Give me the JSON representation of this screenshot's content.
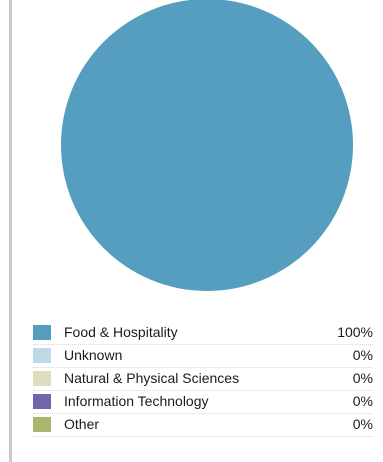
{
  "chart_data": {
    "type": "pie",
    "categories": [
      "Food & Hospitality",
      "Unknown",
      "Natural & Physical Sciences",
      "Information Technology",
      "Other"
    ],
    "values": [
      100,
      0,
      0,
      0,
      0
    ],
    "value_labels": [
      "100%",
      "0%",
      "0%",
      "0%",
      "0%"
    ],
    "colors": [
      "#559ec0",
      "#bcdbe6",
      "#dfdcbf",
      "#7067a9",
      "#a9b66c"
    ],
    "legend_position": "bottom"
  }
}
